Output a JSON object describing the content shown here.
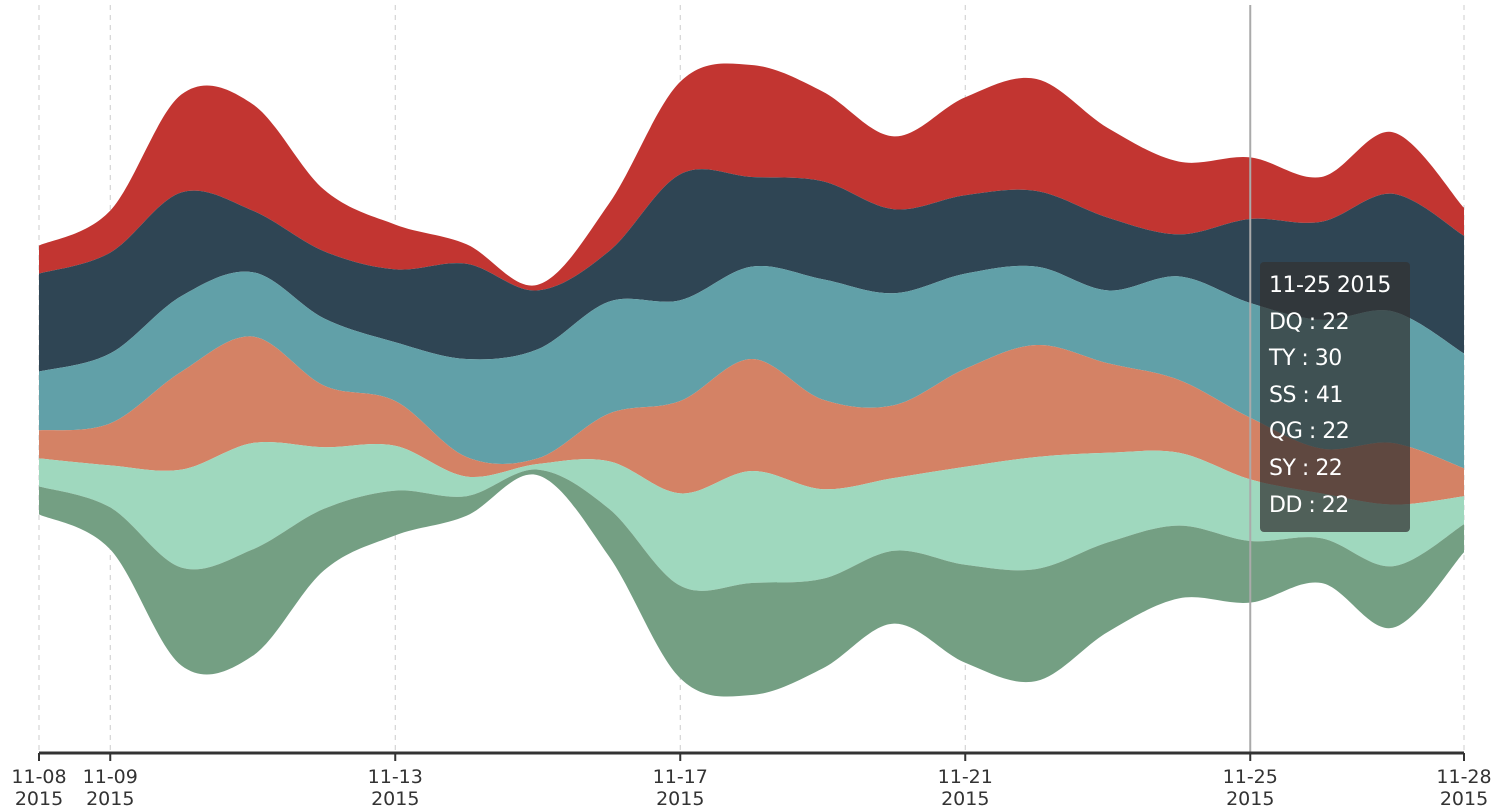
{
  "chart_data": {
    "type": "themeRiver",
    "x": [
      "2015-11-08",
      "2015-11-09",
      "2015-11-10",
      "2015-11-11",
      "2015-11-12",
      "2015-11-13",
      "2015-11-14",
      "2015-11-15",
      "2015-11-16",
      "2015-11-17",
      "2015-11-18",
      "2015-11-19",
      "2015-11-20",
      "2015-11-21",
      "2015-11-22",
      "2015-11-23",
      "2015-11-24",
      "2015-11-25",
      "2015-11-26",
      "2015-11-27",
      "2015-11-28"
    ],
    "series": [
      {
        "name": "DQ",
        "color": "#c23531",
        "values": [
          10,
          15,
          35,
          38,
          22,
          16,
          7,
          2,
          17,
          33,
          40,
          32,
          26,
          35,
          40,
          32,
          26,
          22,
          16,
          22,
          10
        ]
      },
      {
        "name": "TY",
        "color": "#2f4554",
        "values": [
          35,
          36,
          37,
          22,
          24,
          26,
          34,
          21,
          18,
          45,
          32,
          35,
          30,
          28,
          27,
          26,
          15,
          30,
          35,
          42,
          42
        ]
      },
      {
        "name": "SS",
        "color": "#61a0a8",
        "values": [
          21,
          25,
          27,
          23,
          24,
          21,
          35,
          39,
          40,
          36,
          33,
          43,
          40,
          34,
          28,
          26,
          37,
          41,
          46,
          47,
          41
        ]
      },
      {
        "name": "QG",
        "color": "#d48265",
        "values": [
          10,
          15,
          35,
          38,
          22,
          16,
          7,
          2,
          17,
          33,
          40,
          32,
          26,
          35,
          40,
          32,
          26,
          22,
          16,
          22,
          10
        ]
      },
      {
        "name": "SY",
        "color": "#9fd8be",
        "values": [
          10,
          15,
          35,
          38,
          22,
          16,
          7,
          2,
          17,
          33,
          40,
          32,
          26,
          35,
          40,
          32,
          26,
          22,
          16,
          22,
          10
        ]
      },
      {
        "name": "DD",
        "color": "#749f83",
        "values": [
          10,
          15,
          35,
          38,
          22,
          16,
          7,
          2,
          17,
          33,
          40,
          32,
          26,
          35,
          40,
          32,
          26,
          22,
          16,
          22,
          10
        ]
      }
    ],
    "xticks": [
      {
        "value": "2015-11-08",
        "label": "11-08 2015"
      },
      {
        "value": "2015-11-09",
        "label": "11-09 2015"
      },
      {
        "value": "2015-11-13",
        "label": "11-13 2015"
      },
      {
        "value": "2015-11-17",
        "label": "11-17 2015"
      },
      {
        "value": "2015-11-21",
        "label": "11-21 2015"
      },
      {
        "value": "2015-11-25",
        "label": "11-25 2015"
      },
      {
        "value": "2015-11-28",
        "label": "11-28 2015"
      }
    ],
    "grid": true,
    "tooltip": {
      "title": "11-25 2015",
      "index": 17
    }
  }
}
